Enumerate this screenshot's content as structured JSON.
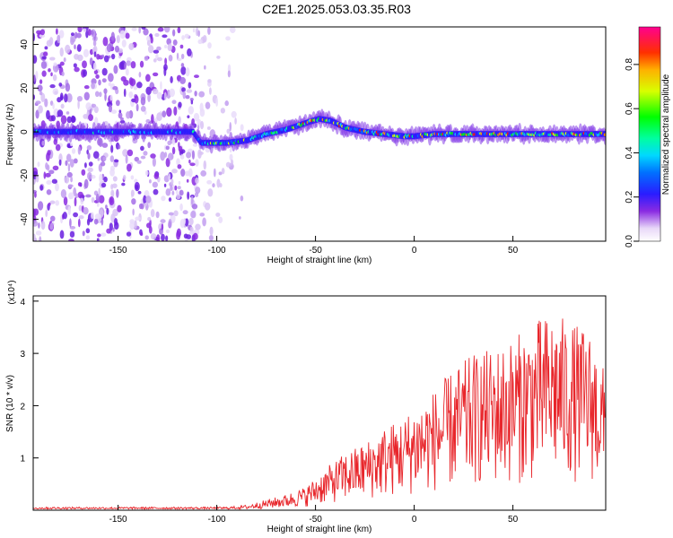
{
  "title": "C2E1.2025.053.03.35.R03",
  "colors": {
    "snr_line": "#e8262b",
    "noise_purple": "#8a2be2",
    "ridge_core": "#1a4cff",
    "frame": "#000000"
  },
  "chart_data": [
    {
      "type": "heatmap",
      "xlabel": "Height of straight line (km)",
      "ylabel": "Frequency (Hz)",
      "xlim": [
        -193,
        97
      ],
      "ylim": [
        -50,
        48
      ],
      "xticks": [
        -150,
        -100,
        -50,
        0,
        50
      ],
      "xtick_labels": [
        "-150",
        "-100",
        "-50",
        "0",
        "50"
      ],
      "yticks": [
        -40,
        -20,
        0,
        20,
        40
      ],
      "ytick_labels": [
        "-40",
        "-20",
        "0",
        "20",
        "40"
      ],
      "ridge_frequency_hz": {
        "x": [
          -193,
          -150,
          -112,
          -108,
          -95,
          -85,
          -75,
          -65,
          -55,
          -48,
          -42,
          -35,
          -25,
          -15,
          -5,
          0,
          10,
          30,
          50,
          70,
          97
        ],
        "y": [
          0,
          0,
          0,
          -5,
          -5,
          -4,
          -1,
          1,
          4,
          6,
          5,
          2,
          0,
          -1,
          -2,
          -2,
          -1,
          -1,
          -1,
          -1,
          -1
        ]
      },
      "noise_region_km": [
        -193,
        -95
      ],
      "colorbar": {
        "label": "Normalized spectral amplitude",
        "range": [
          0.0,
          0.97
        ],
        "ticks": [
          0.0,
          0.2,
          0.4,
          0.6,
          0.8
        ],
        "tick_labels": [
          "0.0",
          "0.2",
          "0.4",
          "0.6",
          "0.8"
        ],
        "colormap": "rainbow"
      },
      "grid": false
    },
    {
      "type": "line",
      "xlabel": "Height of straight line (km)",
      "ylabel": "SNR (10 * v/v)",
      "y_multiplier": "(x10⁴)",
      "xlim": [
        -193,
        97
      ],
      "ylim": [
        0,
        4.1
      ],
      "xticks": [
        -150,
        -100,
        -50,
        0,
        50
      ],
      "xtick_labels": [
        "-150",
        "-100",
        "-50",
        "0",
        "50"
      ],
      "yticks": [
        1,
        2,
        3,
        4
      ],
      "ytick_labels": [
        "1",
        "2",
        "3",
        "4"
      ],
      "series": [
        {
          "envelope_x": [
            -193,
            -150,
            -110,
            -95,
            -85,
            -75,
            -65,
            -55,
            -45,
            -35,
            -25,
            -15,
            -5,
            0,
            10,
            20,
            30,
            40,
            50,
            60,
            70,
            80,
            90,
            97
          ],
          "envelope_y": [
            0.05,
            0.05,
            0.05,
            0.05,
            0.1,
            0.2,
            0.3,
            0.45,
            0.8,
            1.1,
            1.3,
            1.6,
            1.8,
            2.0,
            2.3,
            2.7,
            3.0,
            3.1,
            3.3,
            3.6,
            3.8,
            3.6,
            3.4,
            2.6
          ]
        }
      ],
      "grid": false
    }
  ]
}
